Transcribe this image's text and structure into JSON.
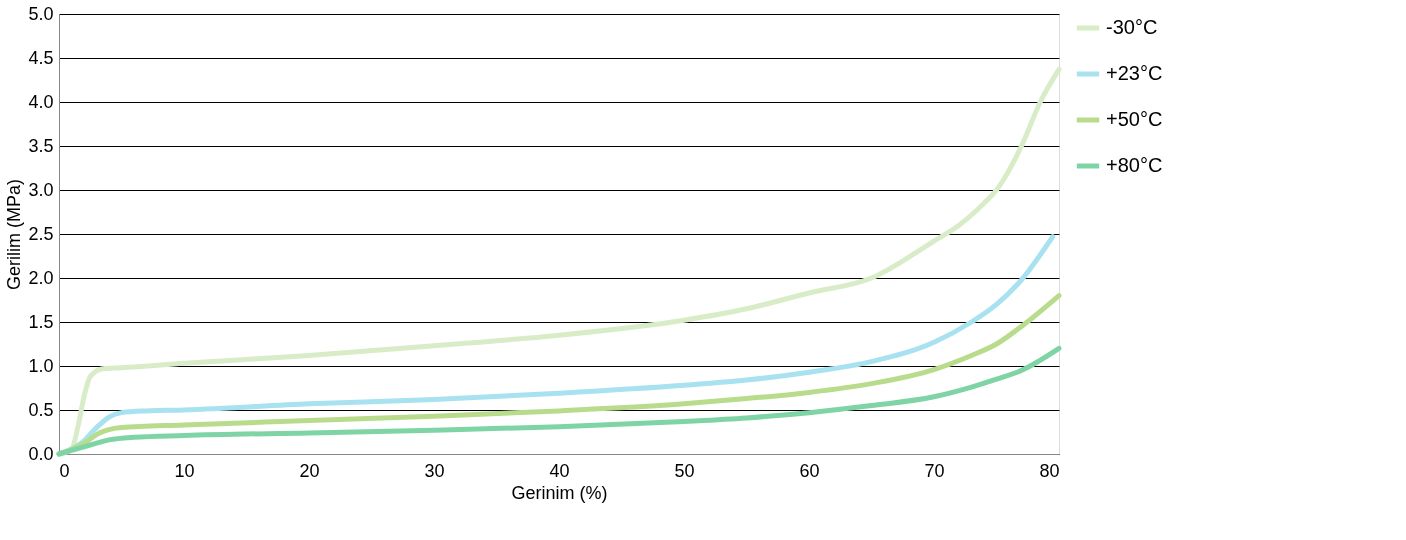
{
  "chart_data": {
    "type": "line",
    "xlabel": "Gerinim (%)",
    "ylabel": "Gerilim (MPa)",
    "xlim": [
      0,
      80
    ],
    "xticks": [
      0,
      10,
      20,
      30,
      40,
      50,
      60,
      70,
      80
    ],
    "ylim": [
      0,
      5
    ],
    "yticks": [
      {
        "value": 0,
        "label": "0.0"
      },
      0.5,
      {
        "value": 1,
        "label": "1.0"
      },
      1.5,
      {
        "value": 2,
        "label": "2.0"
      },
      2.5,
      {
        "value": 3,
        "label": "3.0"
      },
      3.5,
      {
        "value": 4,
        "label": "4.0"
      },
      4.5,
      {
        "value": 5,
        "label": "5.0"
      }
    ],
    "grid": "y",
    "legend": "right",
    "marker": "none",
    "line_style": "solid",
    "series": [
      {
        "name": "-30°C",
        "color": "#d9ecc8",
        "x": [
          0,
          1,
          1.5,
          2,
          2.5,
          3.5,
          5,
          10,
          20,
          30,
          40,
          50,
          55,
          60,
          65,
          70,
          72,
          74,
          75,
          77,
          78.5,
          80
        ],
        "values": [
          0,
          0.05,
          0.3,
          0.65,
          0.88,
          0.97,
          0.98,
          1.03,
          1.12,
          1.23,
          1.35,
          1.52,
          1.65,
          1.83,
          2.0,
          2.42,
          2.6,
          2.85,
          3.0,
          3.5,
          4.0,
          4.37
        ]
      },
      {
        "name": "+23°C",
        "color": "#a8e1f0",
        "x": [
          0,
          2,
          3,
          4,
          5,
          7,
          10,
          20,
          30,
          40,
          50,
          55,
          60,
          65,
          70,
          73,
          75,
          77,
          79.5
        ],
        "values": [
          0,
          0.15,
          0.3,
          0.42,
          0.47,
          0.49,
          0.5,
          0.57,
          0.62,
          0.69,
          0.78,
          0.84,
          0.93,
          1.05,
          1.27,
          1.5,
          1.7,
          1.98,
          2.47
        ]
      },
      {
        "name": "+50°C",
        "color": "#b8dc8c",
        "x": [
          0,
          2,
          3,
          5,
          10,
          20,
          30,
          40,
          50,
          55,
          60,
          65,
          70,
          73,
          75,
          77,
          80
        ],
        "values": [
          0,
          0.12,
          0.22,
          0.3,
          0.33,
          0.38,
          0.43,
          0.49,
          0.57,
          0.63,
          0.7,
          0.8,
          0.96,
          1.12,
          1.25,
          1.45,
          1.8
        ]
      },
      {
        "name": "+80°C",
        "color": "#7ed4a4",
        "x": [
          0,
          2,
          4,
          6,
          10,
          20,
          30,
          40,
          50,
          55,
          60,
          65,
          70,
          73,
          75,
          77,
          80
        ],
        "values": [
          0,
          0.08,
          0.16,
          0.19,
          0.21,
          0.24,
          0.27,
          0.31,
          0.37,
          0.41,
          0.47,
          0.55,
          0.65,
          0.76,
          0.85,
          0.95,
          1.2
        ]
      }
    ]
  }
}
